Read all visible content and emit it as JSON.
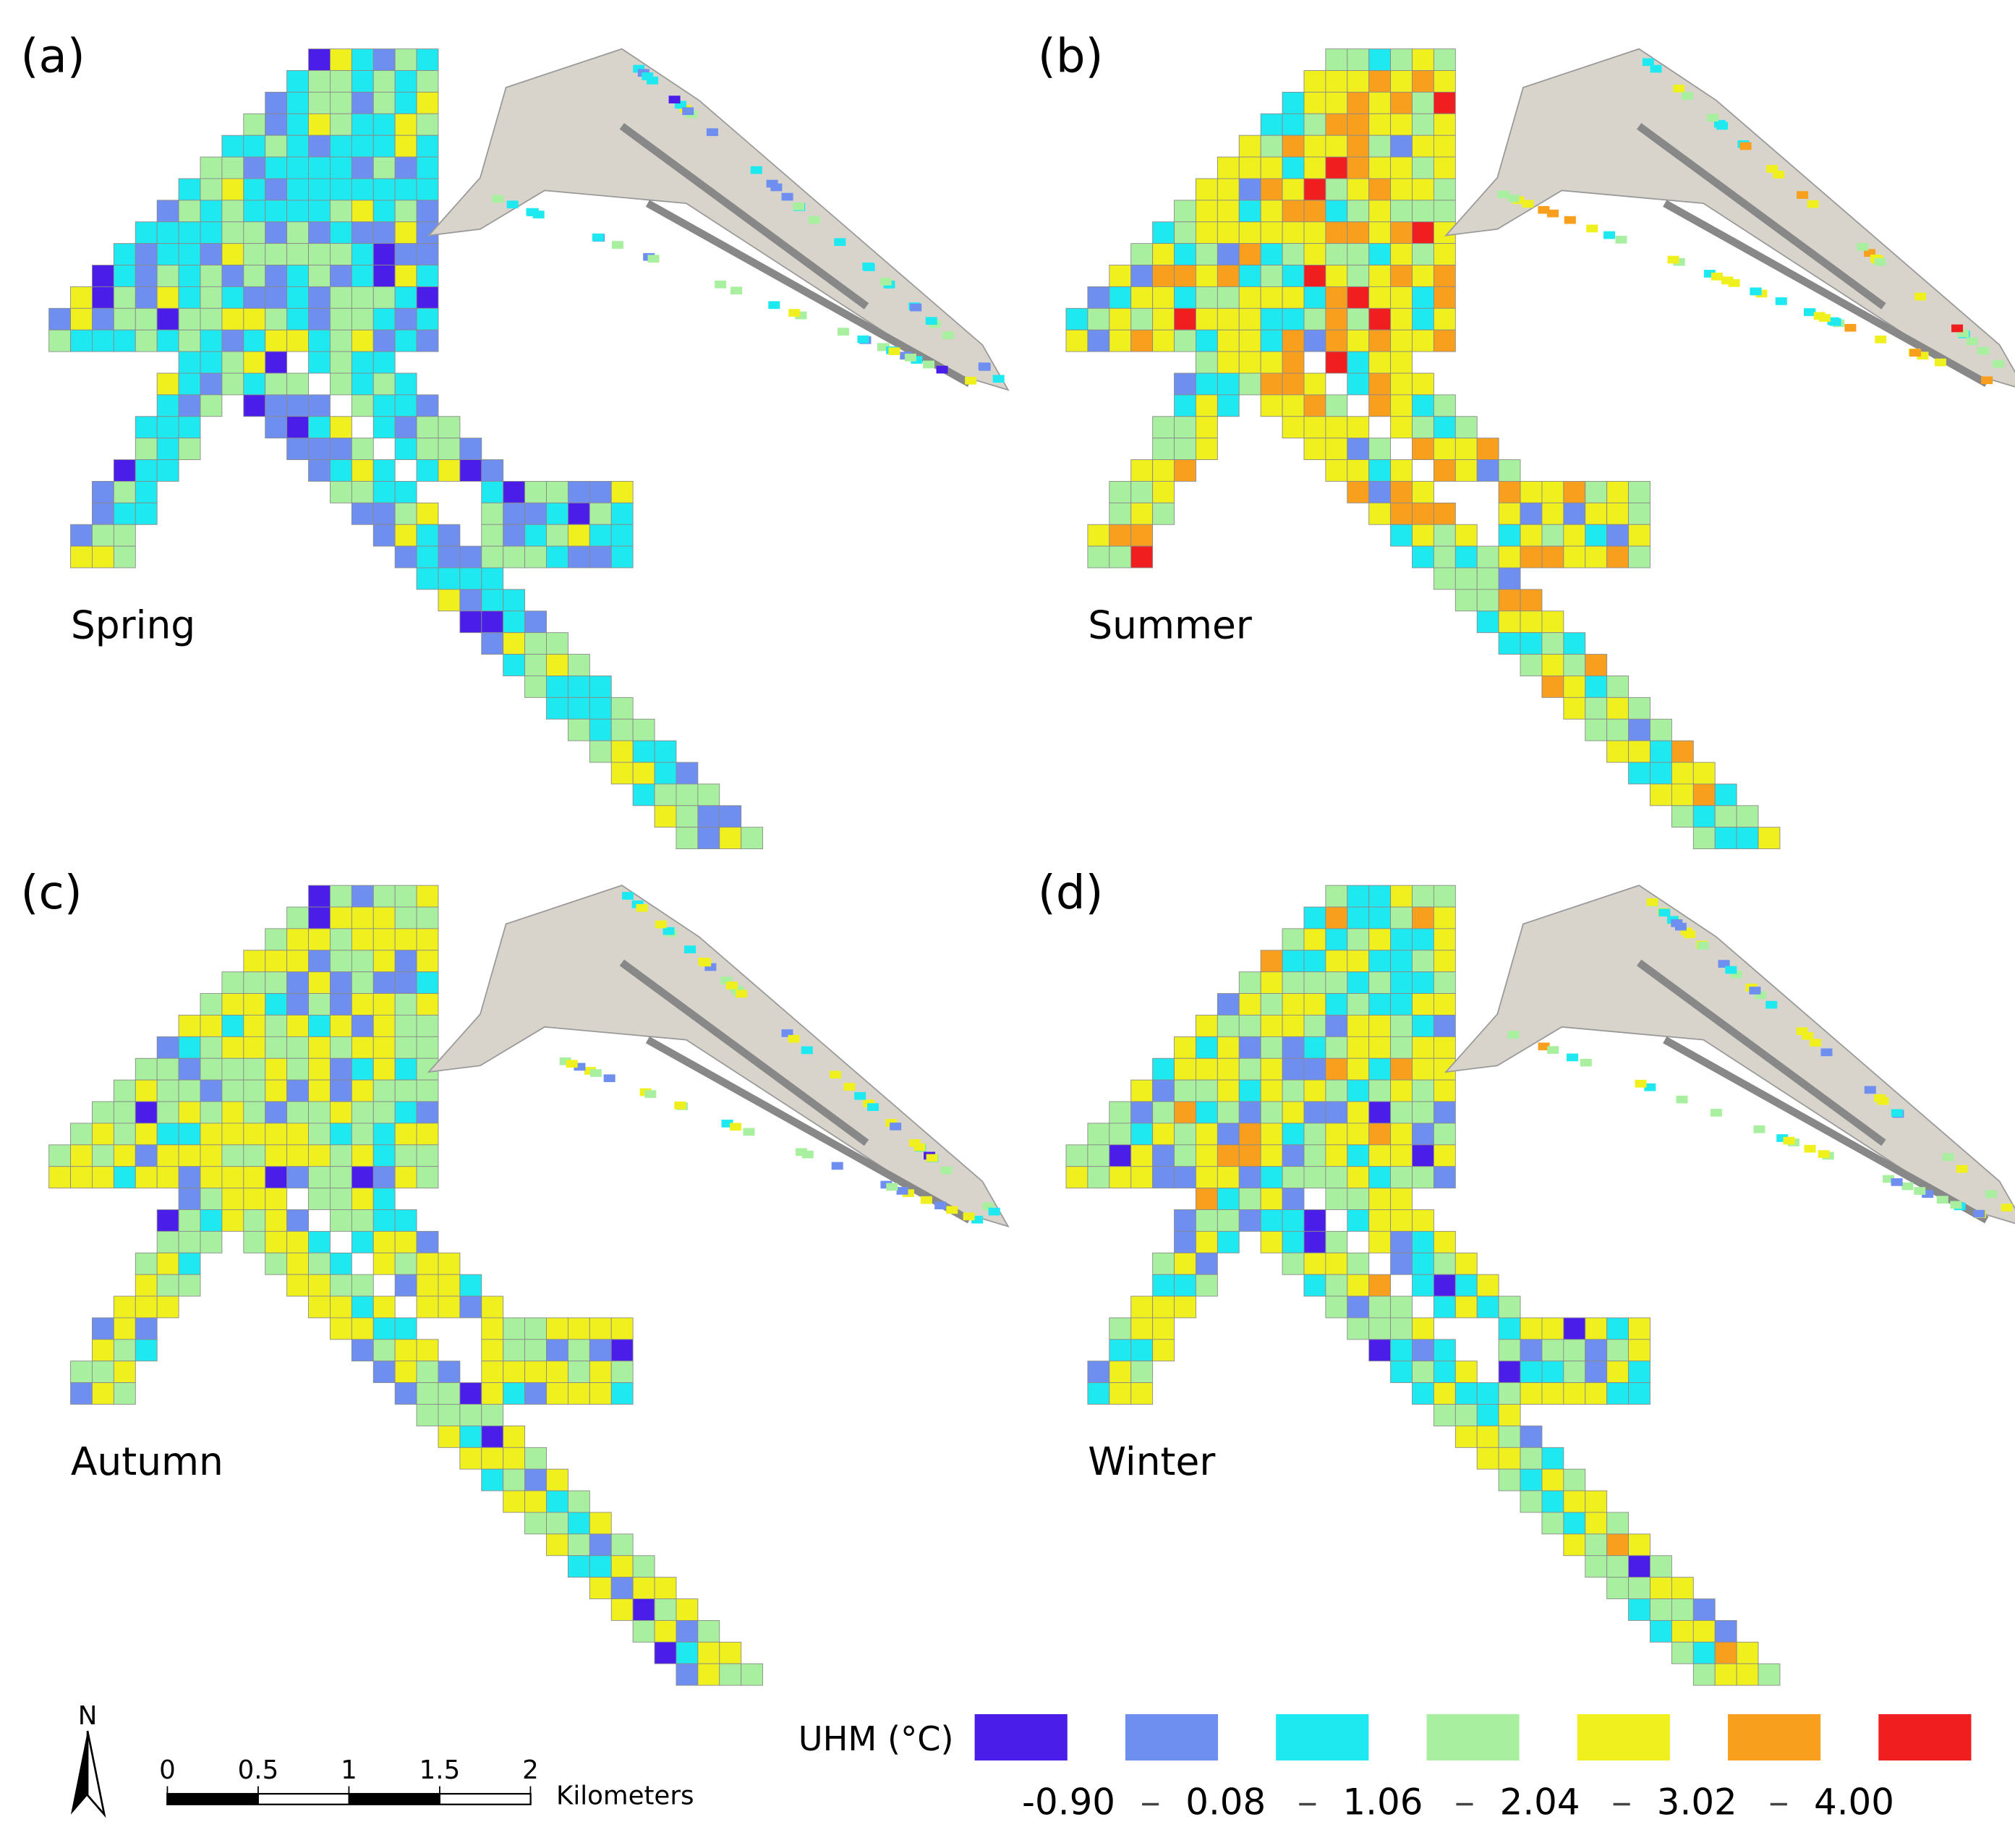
{
  "figure": {
    "panels": [
      {
        "label": "(a)",
        "season": "Spring"
      },
      {
        "label": "(b)",
        "season": "Summer"
      },
      {
        "label": "(c)",
        "season": "Autumn"
      },
      {
        "label": "(d)",
        "season": "Winter"
      }
    ],
    "legend": {
      "title": "UHM (°C)",
      "colors": [
        "#4a1ee8",
        "#6e8ef0",
        "#1ee8f0",
        "#a8f0a0",
        "#f0f01e",
        "#f8a01e",
        "#f01e1e"
      ],
      "breaks": [
        {
          "value": -0.9,
          "label": "-0.90"
        },
        {
          "value": 0.08,
          "label": "0.08"
        },
        {
          "value": 1.06,
          "label": "1.06"
        },
        {
          "value": 2.04,
          "label": "2.04"
        },
        {
          "value": 3.02,
          "label": "3.02"
        },
        {
          "value": 4,
          "label": "4.00"
        }
      ]
    },
    "scale_bar": {
      "ticks": [
        0,
        0.5,
        1,
        1.5,
        2
      ],
      "unit": "Kilometers"
    },
    "north_arrow": "N"
  }
}
